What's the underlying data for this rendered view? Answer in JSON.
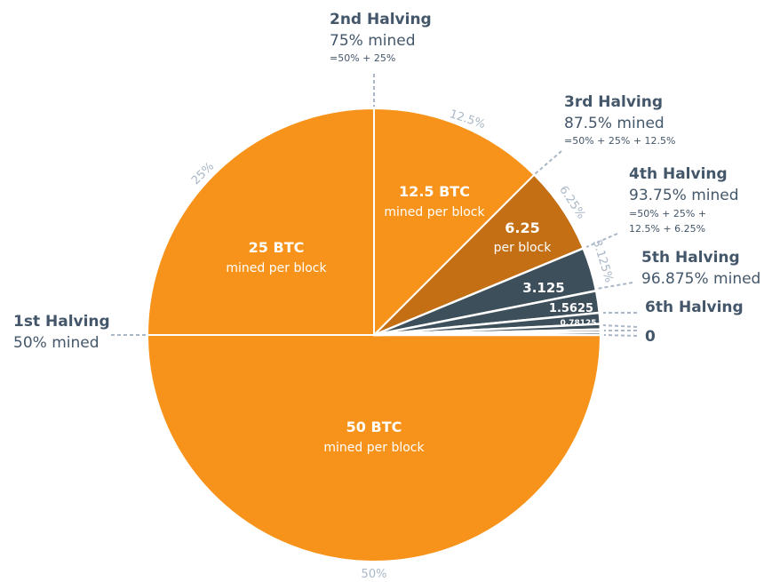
{
  "chart_data": {
    "type": "pie",
    "slices": [
      {
        "label": "50 BTC",
        "sublabel": "mined per block",
        "value": 50,
        "percent_label": "50%"
      },
      {
        "label": "25 BTC",
        "sublabel": "mined per block",
        "value": 25,
        "percent_label": "25%"
      },
      {
        "label": "12.5 BTC",
        "sublabel": "mined per block",
        "value": 12.5,
        "percent_label": "12.5%"
      },
      {
        "label": "6.25",
        "sublabel": "per block",
        "value": 6.25,
        "percent_label": "6.25%"
      },
      {
        "label": "3.125",
        "sublabel": "",
        "value": 3.125,
        "percent_label": "3.125%"
      },
      {
        "label": "1.5625",
        "sublabel": "",
        "value": 1.5625,
        "percent_label": ""
      },
      {
        "label": "0.78125",
        "sublabel": "",
        "value": 0.78125,
        "percent_label": ""
      },
      {
        "label": "",
        "sublabel": "",
        "value": 0.390625,
        "percent_label": ""
      },
      {
        "label": "",
        "sublabel": "",
        "value": 0.1953125,
        "percent_label": ""
      },
      {
        "label": "",
        "sublabel": "",
        "value": 0.1953125,
        "percent_label": ""
      }
    ],
    "halvings": [
      {
        "title": "1st Halving",
        "mined": "50% mined",
        "formula": []
      },
      {
        "title": "2nd Halving",
        "mined": "75% mined",
        "formula": [
          "=50% + 25%"
        ]
      },
      {
        "title": "3rd Halving",
        "mined": "87.5% mined",
        "formula": [
          "=50% + 25% + 12.5%"
        ]
      },
      {
        "title": "4th Halving",
        "mined": "93.75% mined",
        "formula": [
          "=50% + 25% +",
          "12.5% + 6.25%"
        ]
      },
      {
        "title": "5th Halving",
        "mined": "96.875% mined",
        "formula": []
      },
      {
        "title": "6th Halving",
        "mined": "",
        "formula": []
      },
      {
        "title": "0",
        "mined": "",
        "formula": []
      }
    ],
    "colors": {
      "orange": "#F7931A",
      "dark_orange": "#C46F14",
      "slate": "#3E4F5C",
      "heading": "#44576A",
      "percent": "#A9B7C6",
      "leader": "#A9B7C6",
      "divider": "#FFFFFF"
    }
  }
}
